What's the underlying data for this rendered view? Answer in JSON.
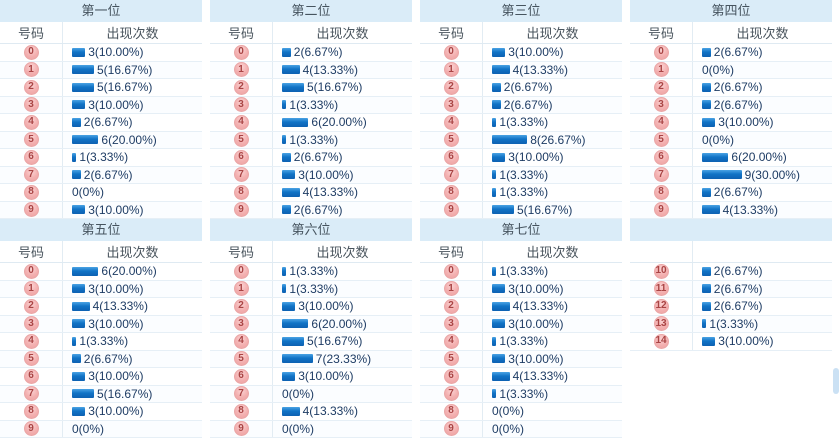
{
  "columns": {
    "number": "号码",
    "count": "出现次数"
  },
  "sections": [
    {
      "title": "第一位",
      "headers": {
        "number": "号码",
        "count": "出现次数"
      },
      "rows": [
        {
          "num": "0",
          "count": 3,
          "label": "3(10.00%)"
        },
        {
          "num": "1",
          "count": 5,
          "label": "5(16.67%)"
        },
        {
          "num": "2",
          "count": 5,
          "label": "5(16.67%)"
        },
        {
          "num": "3",
          "count": 3,
          "label": "3(10.00%)"
        },
        {
          "num": "4",
          "count": 2,
          "label": "2(6.67%)"
        },
        {
          "num": "5",
          "count": 6,
          "label": "6(20.00%)"
        },
        {
          "num": "6",
          "count": 1,
          "label": "1(3.33%)"
        },
        {
          "num": "7",
          "count": 2,
          "label": "2(6.67%)"
        },
        {
          "num": "8",
          "count": 0,
          "label": "0(0%)"
        },
        {
          "num": "9",
          "count": 3,
          "label": "3(10.00%)"
        }
      ]
    },
    {
      "title": "第二位",
      "headers": {
        "number": "号码",
        "count": "出现次数"
      },
      "rows": [
        {
          "num": "0",
          "count": 2,
          "label": "2(6.67%)"
        },
        {
          "num": "1",
          "count": 4,
          "label": "4(13.33%)"
        },
        {
          "num": "2",
          "count": 5,
          "label": "5(16.67%)"
        },
        {
          "num": "3",
          "count": 1,
          "label": "1(3.33%)"
        },
        {
          "num": "4",
          "count": 6,
          "label": "6(20.00%)"
        },
        {
          "num": "5",
          "count": 1,
          "label": "1(3.33%)"
        },
        {
          "num": "6",
          "count": 2,
          "label": "2(6.67%)"
        },
        {
          "num": "7",
          "count": 3,
          "label": "3(10.00%)"
        },
        {
          "num": "8",
          "count": 4,
          "label": "4(13.33%)"
        },
        {
          "num": "9",
          "count": 2,
          "label": "2(6.67%)"
        }
      ]
    },
    {
      "title": "第三位",
      "headers": {
        "number": "号码",
        "count": "出现次数"
      },
      "rows": [
        {
          "num": "0",
          "count": 3,
          "label": "3(10.00%)"
        },
        {
          "num": "1",
          "count": 4,
          "label": "4(13.33%)"
        },
        {
          "num": "2",
          "count": 2,
          "label": "2(6.67%)"
        },
        {
          "num": "3",
          "count": 2,
          "label": "2(6.67%)"
        },
        {
          "num": "4",
          "count": 1,
          "label": "1(3.33%)"
        },
        {
          "num": "5",
          "count": 8,
          "label": "8(26.67%)"
        },
        {
          "num": "6",
          "count": 3,
          "label": "3(10.00%)"
        },
        {
          "num": "7",
          "count": 1,
          "label": "1(3.33%)"
        },
        {
          "num": "8",
          "count": 1,
          "label": "1(3.33%)"
        },
        {
          "num": "9",
          "count": 5,
          "label": "5(16.67%)"
        }
      ]
    },
    {
      "title": "第四位",
      "headers": {
        "number": "号码",
        "count": "出现次数"
      },
      "rows": [
        {
          "num": "0",
          "count": 2,
          "label": "2(6.67%)"
        },
        {
          "num": "1",
          "count": 0,
          "label": "0(0%)"
        },
        {
          "num": "2",
          "count": 2,
          "label": "2(6.67%)"
        },
        {
          "num": "3",
          "count": 2,
          "label": "2(6.67%)"
        },
        {
          "num": "4",
          "count": 3,
          "label": "3(10.00%)"
        },
        {
          "num": "5",
          "count": 0,
          "label": "0(0%)"
        },
        {
          "num": "6",
          "count": 6,
          "label": "6(20.00%)"
        },
        {
          "num": "7",
          "count": 9,
          "label": "9(30.00%)"
        },
        {
          "num": "8",
          "count": 2,
          "label": "2(6.67%)"
        },
        {
          "num": "9",
          "count": 4,
          "label": "4(13.33%)"
        }
      ]
    },
    {
      "title": "第五位",
      "headers": {
        "number": "号码",
        "count": "出现次数"
      },
      "rows": [
        {
          "num": "0",
          "count": 6,
          "label": "6(20.00%)"
        },
        {
          "num": "1",
          "count": 3,
          "label": "3(10.00%)"
        },
        {
          "num": "2",
          "count": 4,
          "label": "4(13.33%)"
        },
        {
          "num": "3",
          "count": 3,
          "label": "3(10.00%)"
        },
        {
          "num": "4",
          "count": 1,
          "label": "1(3.33%)"
        },
        {
          "num": "5",
          "count": 2,
          "label": "2(6.67%)"
        },
        {
          "num": "6",
          "count": 3,
          "label": "3(10.00%)"
        },
        {
          "num": "7",
          "count": 5,
          "label": "5(16.67%)"
        },
        {
          "num": "8",
          "count": 3,
          "label": "3(10.00%)"
        },
        {
          "num": "9",
          "count": 0,
          "label": "0(0%)"
        }
      ]
    },
    {
      "title": "第六位",
      "headers": {
        "number": "号码",
        "count": "出现次数"
      },
      "rows": [
        {
          "num": "0",
          "count": 1,
          "label": "1(3.33%)"
        },
        {
          "num": "1",
          "count": 1,
          "label": "1(3.33%)"
        },
        {
          "num": "2",
          "count": 3,
          "label": "3(10.00%)"
        },
        {
          "num": "3",
          "count": 6,
          "label": "6(20.00%)"
        },
        {
          "num": "4",
          "count": 5,
          "label": "5(16.67%)"
        },
        {
          "num": "5",
          "count": 7,
          "label": "7(23.33%)"
        },
        {
          "num": "6",
          "count": 3,
          "label": "3(10.00%)"
        },
        {
          "num": "7",
          "count": 0,
          "label": "0(0%)"
        },
        {
          "num": "8",
          "count": 4,
          "label": "4(13.33%)"
        },
        {
          "num": "9",
          "count": 0,
          "label": "0(0%)"
        }
      ]
    },
    {
      "title": "第七位",
      "headers": {
        "number": "号码",
        "count": "出现次数"
      },
      "rows": [
        {
          "num": "0",
          "count": 1,
          "label": "1(3.33%)"
        },
        {
          "num": "1",
          "count": 3,
          "label": "3(10.00%)"
        },
        {
          "num": "2",
          "count": 4,
          "label": "4(13.33%)"
        },
        {
          "num": "3",
          "count": 3,
          "label": "3(10.00%)"
        },
        {
          "num": "4",
          "count": 1,
          "label": "1(3.33%)"
        },
        {
          "num": "5",
          "count": 3,
          "label": "3(10.00%)"
        },
        {
          "num": "6",
          "count": 4,
          "label": "4(13.33%)"
        },
        {
          "num": "7",
          "count": 1,
          "label": "1(3.33%)"
        },
        {
          "num": "8",
          "count": 0,
          "label": "0(0%)"
        },
        {
          "num": "9",
          "count": 0,
          "label": "0(0%)"
        }
      ]
    },
    {
      "title": "",
      "headers": {
        "number": "",
        "count": ""
      },
      "rows": [
        {
          "num": "10",
          "count": 2,
          "label": "2(6.67%)"
        },
        {
          "num": "11",
          "count": 2,
          "label": "2(6.67%)"
        },
        {
          "num": "12",
          "count": 2,
          "label": "2(6.67%)"
        },
        {
          "num": "13",
          "count": 1,
          "label": "1(3.33%)"
        },
        {
          "num": "14",
          "count": 3,
          "label": "3(10.00%)"
        }
      ]
    }
  ],
  "colors": {
    "title_band": "#daecf8",
    "row_border": "#e6eff6",
    "bar_blue": "#0d61b2",
    "badge_pink": "#f3b0b0",
    "badge_text": "#a94444",
    "label_text": "#1e3c64"
  },
  "chart_data": [
    {
      "type": "bar",
      "title": "第一位",
      "categories": [
        "0",
        "1",
        "2",
        "3",
        "4",
        "5",
        "6",
        "7",
        "8",
        "9"
      ],
      "values": [
        3,
        5,
        5,
        3,
        2,
        6,
        1,
        2,
        0,
        3
      ]
    },
    {
      "type": "bar",
      "title": "第二位",
      "categories": [
        "0",
        "1",
        "2",
        "3",
        "4",
        "5",
        "6",
        "7",
        "8",
        "9"
      ],
      "values": [
        2,
        4,
        5,
        1,
        6,
        1,
        2,
        3,
        4,
        2
      ]
    },
    {
      "type": "bar",
      "title": "第三位",
      "categories": [
        "0",
        "1",
        "2",
        "3",
        "4",
        "5",
        "6",
        "7",
        "8",
        "9"
      ],
      "values": [
        3,
        4,
        2,
        2,
        1,
        8,
        3,
        1,
        1,
        5
      ]
    },
    {
      "type": "bar",
      "title": "第四位",
      "categories": [
        "0",
        "1",
        "2",
        "3",
        "4",
        "5",
        "6",
        "7",
        "8",
        "9"
      ],
      "values": [
        2,
        0,
        2,
        2,
        3,
        0,
        6,
        9,
        2,
        4
      ]
    },
    {
      "type": "bar",
      "title": "第五位",
      "categories": [
        "0",
        "1",
        "2",
        "3",
        "4",
        "5",
        "6",
        "7",
        "8",
        "9"
      ],
      "values": [
        6,
        3,
        4,
        3,
        1,
        2,
        3,
        5,
        3,
        0
      ]
    },
    {
      "type": "bar",
      "title": "第六位",
      "categories": [
        "0",
        "1",
        "2",
        "3",
        "4",
        "5",
        "6",
        "7",
        "8",
        "9"
      ],
      "values": [
        1,
        1,
        3,
        6,
        5,
        7,
        3,
        0,
        4,
        0
      ]
    },
    {
      "type": "bar",
      "title": "第七位",
      "categories": [
        "0",
        "1",
        "2",
        "3",
        "4",
        "5",
        "6",
        "7",
        "8",
        "9"
      ],
      "values": [
        1,
        3,
        4,
        3,
        1,
        3,
        4,
        1,
        0,
        0
      ]
    },
    {
      "type": "bar",
      "title": "",
      "categories": [
        "10",
        "11",
        "12",
        "13",
        "14"
      ],
      "values": [
        2,
        2,
        2,
        1,
        3
      ]
    }
  ]
}
